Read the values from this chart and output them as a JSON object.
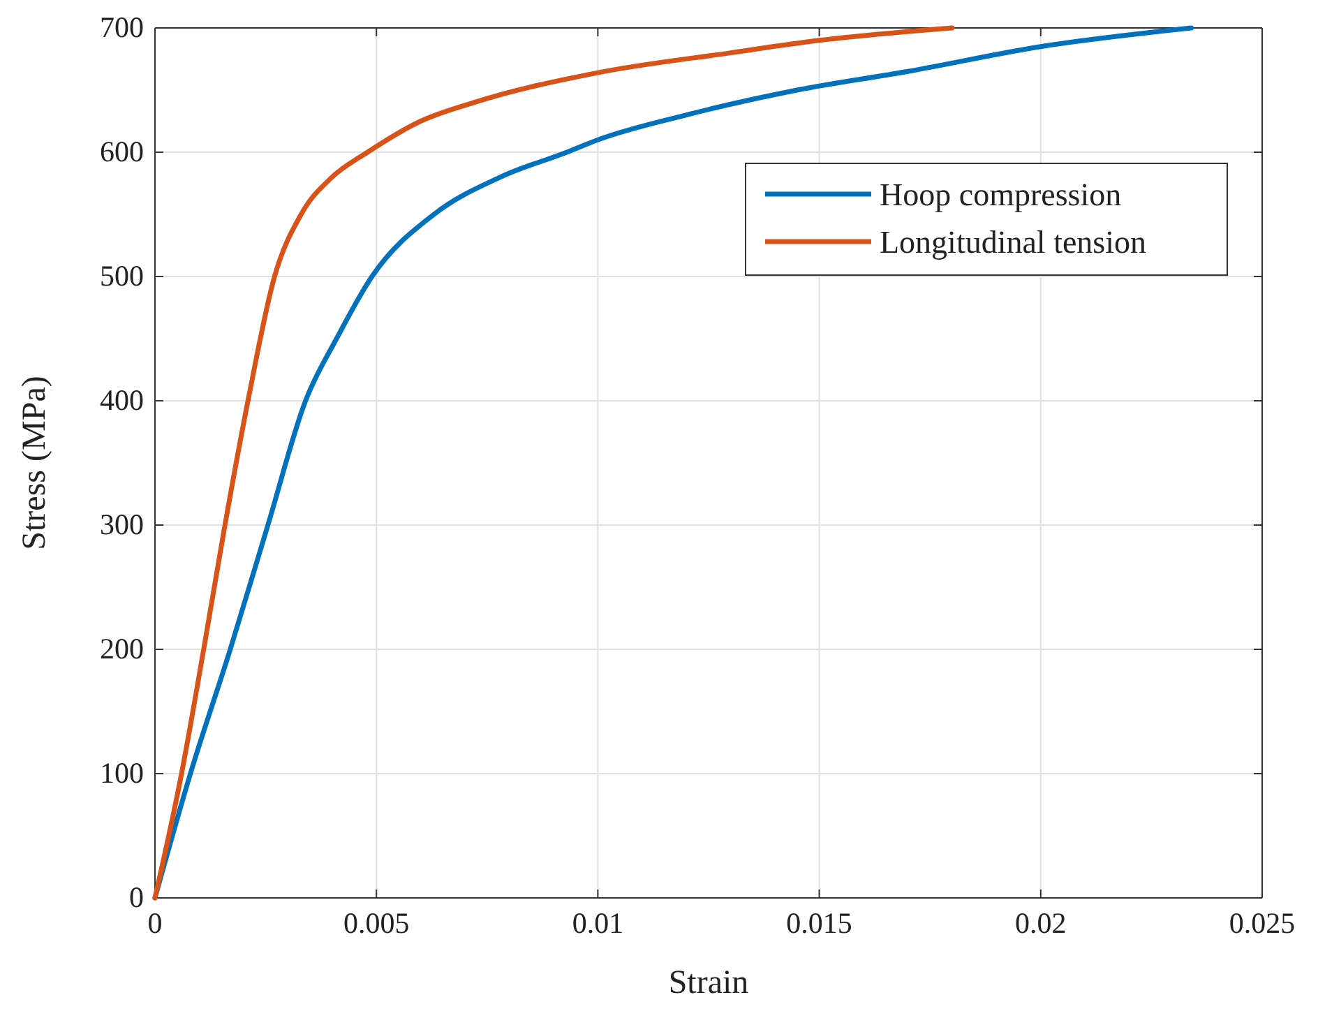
{
  "chart_data": {
    "type": "line",
    "xlabel": "Strain",
    "ylabel": "Stress (MPa)",
    "xlim": [
      0,
      0.025
    ],
    "ylim": [
      0,
      700
    ],
    "xticks": [
      0,
      0.005,
      0.01,
      0.015,
      0.02,
      0.025
    ],
    "yticks": [
      0,
      100,
      200,
      300,
      400,
      500,
      600,
      700
    ],
    "grid": true,
    "legend": "top right",
    "line_style": "solid",
    "marker": "none",
    "series": [
      {
        "name": "Hoop compression",
        "color": "#0072bd",
        "x": [
          0,
          0.0008,
          0.0017,
          0.00255,
          0.0034,
          0.0041,
          0.0049,
          0.0063,
          0.0078,
          0.0093,
          0.01,
          0.012,
          0.0145,
          0.017,
          0.02,
          0.0234
        ],
        "values": [
          0,
          100,
          200,
          300,
          400,
          450,
          500,
          550,
          580,
          600,
          610,
          630,
          650,
          665,
          685,
          700
        ]
      },
      {
        "name": "Longitudinal tension",
        "color": "#d95319",
        "x": [
          0,
          0.0006,
          0.0011,
          0.00158,
          0.0021,
          0.0027,
          0.0033,
          0.004,
          0.0048,
          0.006,
          0.0072,
          0.01,
          0.013,
          0.015,
          0.018
        ],
        "values": [
          0,
          100,
          200,
          300,
          400,
          500,
          550,
          580,
          600,
          625,
          640,
          664,
          680,
          690,
          700
        ]
      }
    ]
  }
}
